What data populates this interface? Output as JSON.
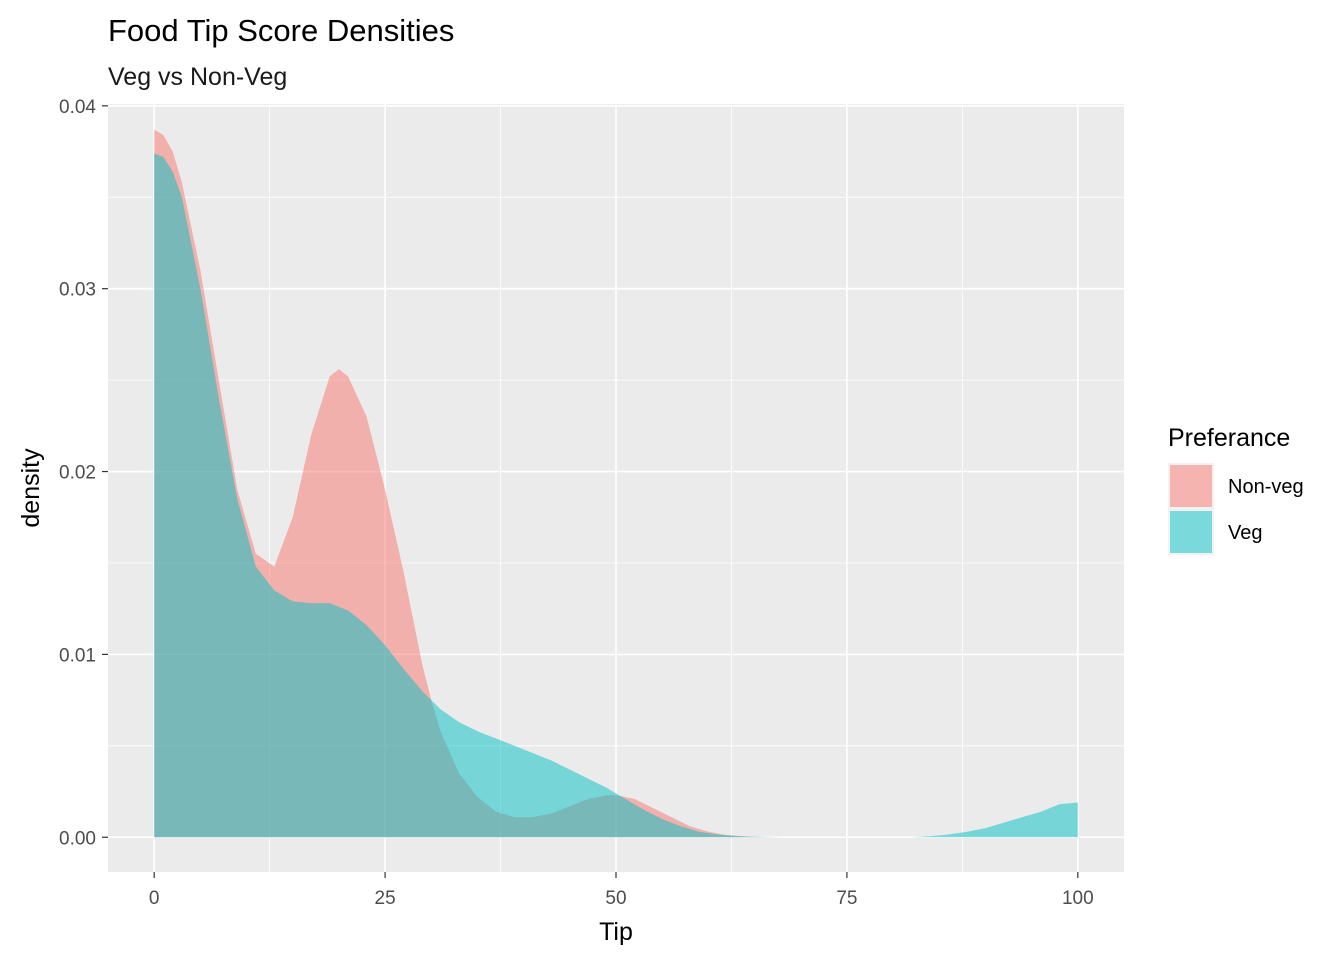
{
  "chart_data": {
    "type": "area",
    "title": "Food Tip Score Densities",
    "subtitle": "Veg vs Non-Veg",
    "xlabel": "Tip",
    "ylabel": "density",
    "xlim": [
      -5,
      105
    ],
    "ylim": [
      -0.0019,
      0.0401
    ],
    "x_ticks": [
      0,
      25,
      50,
      75,
      100
    ],
    "x_tick_labels": [
      "0",
      "25",
      "50",
      "75",
      "100"
    ],
    "y_ticks": [
      0,
      0.01,
      0.02,
      0.03,
      0.04
    ],
    "y_tick_labels": [
      "0.00",
      "0.01",
      "0.02",
      "0.03",
      "0.04"
    ],
    "grid": true,
    "legend": {
      "title": "Preferance",
      "position": "right"
    },
    "series": [
      {
        "name": "Non-veg",
        "color": "#F8766D",
        "x": [
          0,
          1,
          2,
          3,
          5,
          7,
          9,
          11,
          13,
          15,
          17,
          19,
          20,
          21,
          23,
          25,
          27,
          29,
          30,
          31,
          33,
          35,
          37,
          39,
          41,
          43,
          45,
          47,
          49,
          50,
          52,
          54,
          56,
          58,
          60,
          62,
          64,
          66,
          68
        ],
        "values": [
          0.0387,
          0.0384,
          0.0375,
          0.0358,
          0.031,
          0.025,
          0.019,
          0.0155,
          0.0148,
          0.0175,
          0.022,
          0.0252,
          0.0256,
          0.0252,
          0.023,
          0.019,
          0.0145,
          0.0095,
          0.0075,
          0.0058,
          0.0035,
          0.0022,
          0.0014,
          0.0011,
          0.0011,
          0.0013,
          0.0017,
          0.0021,
          0.0023,
          0.0023,
          0.0021,
          0.0016,
          0.0011,
          0.0006,
          0.0003,
          0.00012,
          4e-05,
          1e-05,
          0.0
        ]
      },
      {
        "name": "Veg",
        "color": "#00BFC4",
        "x": [
          0,
          1,
          2,
          3,
          5,
          7,
          9,
          11,
          13,
          15,
          17,
          19,
          21,
          23,
          25,
          27,
          29,
          31,
          33,
          35,
          37,
          39,
          41,
          43,
          45,
          47,
          49,
          51,
          53,
          55,
          57,
          59,
          61,
          63,
          65,
          67,
          68,
          82,
          84,
          86,
          88,
          90,
          92,
          94,
          96,
          98,
          100
        ],
        "values": [
          0.0374,
          0.0372,
          0.0364,
          0.035,
          0.03,
          0.024,
          0.0185,
          0.0148,
          0.0135,
          0.0129,
          0.0128,
          0.0128,
          0.0124,
          0.0116,
          0.0105,
          0.0092,
          0.008,
          0.007,
          0.0063,
          0.0058,
          0.0054,
          0.005,
          0.0046,
          0.0042,
          0.0037,
          0.0032,
          0.0027,
          0.0021,
          0.0015,
          0.001,
          0.0006,
          0.0003,
          0.00015,
          7e-05,
          3e-05,
          1e-05,
          0.0,
          0.0,
          5e-05,
          0.00015,
          0.0003,
          0.0005,
          0.0008,
          0.0011,
          0.0014,
          0.0018,
          0.0019
        ]
      }
    ]
  }
}
